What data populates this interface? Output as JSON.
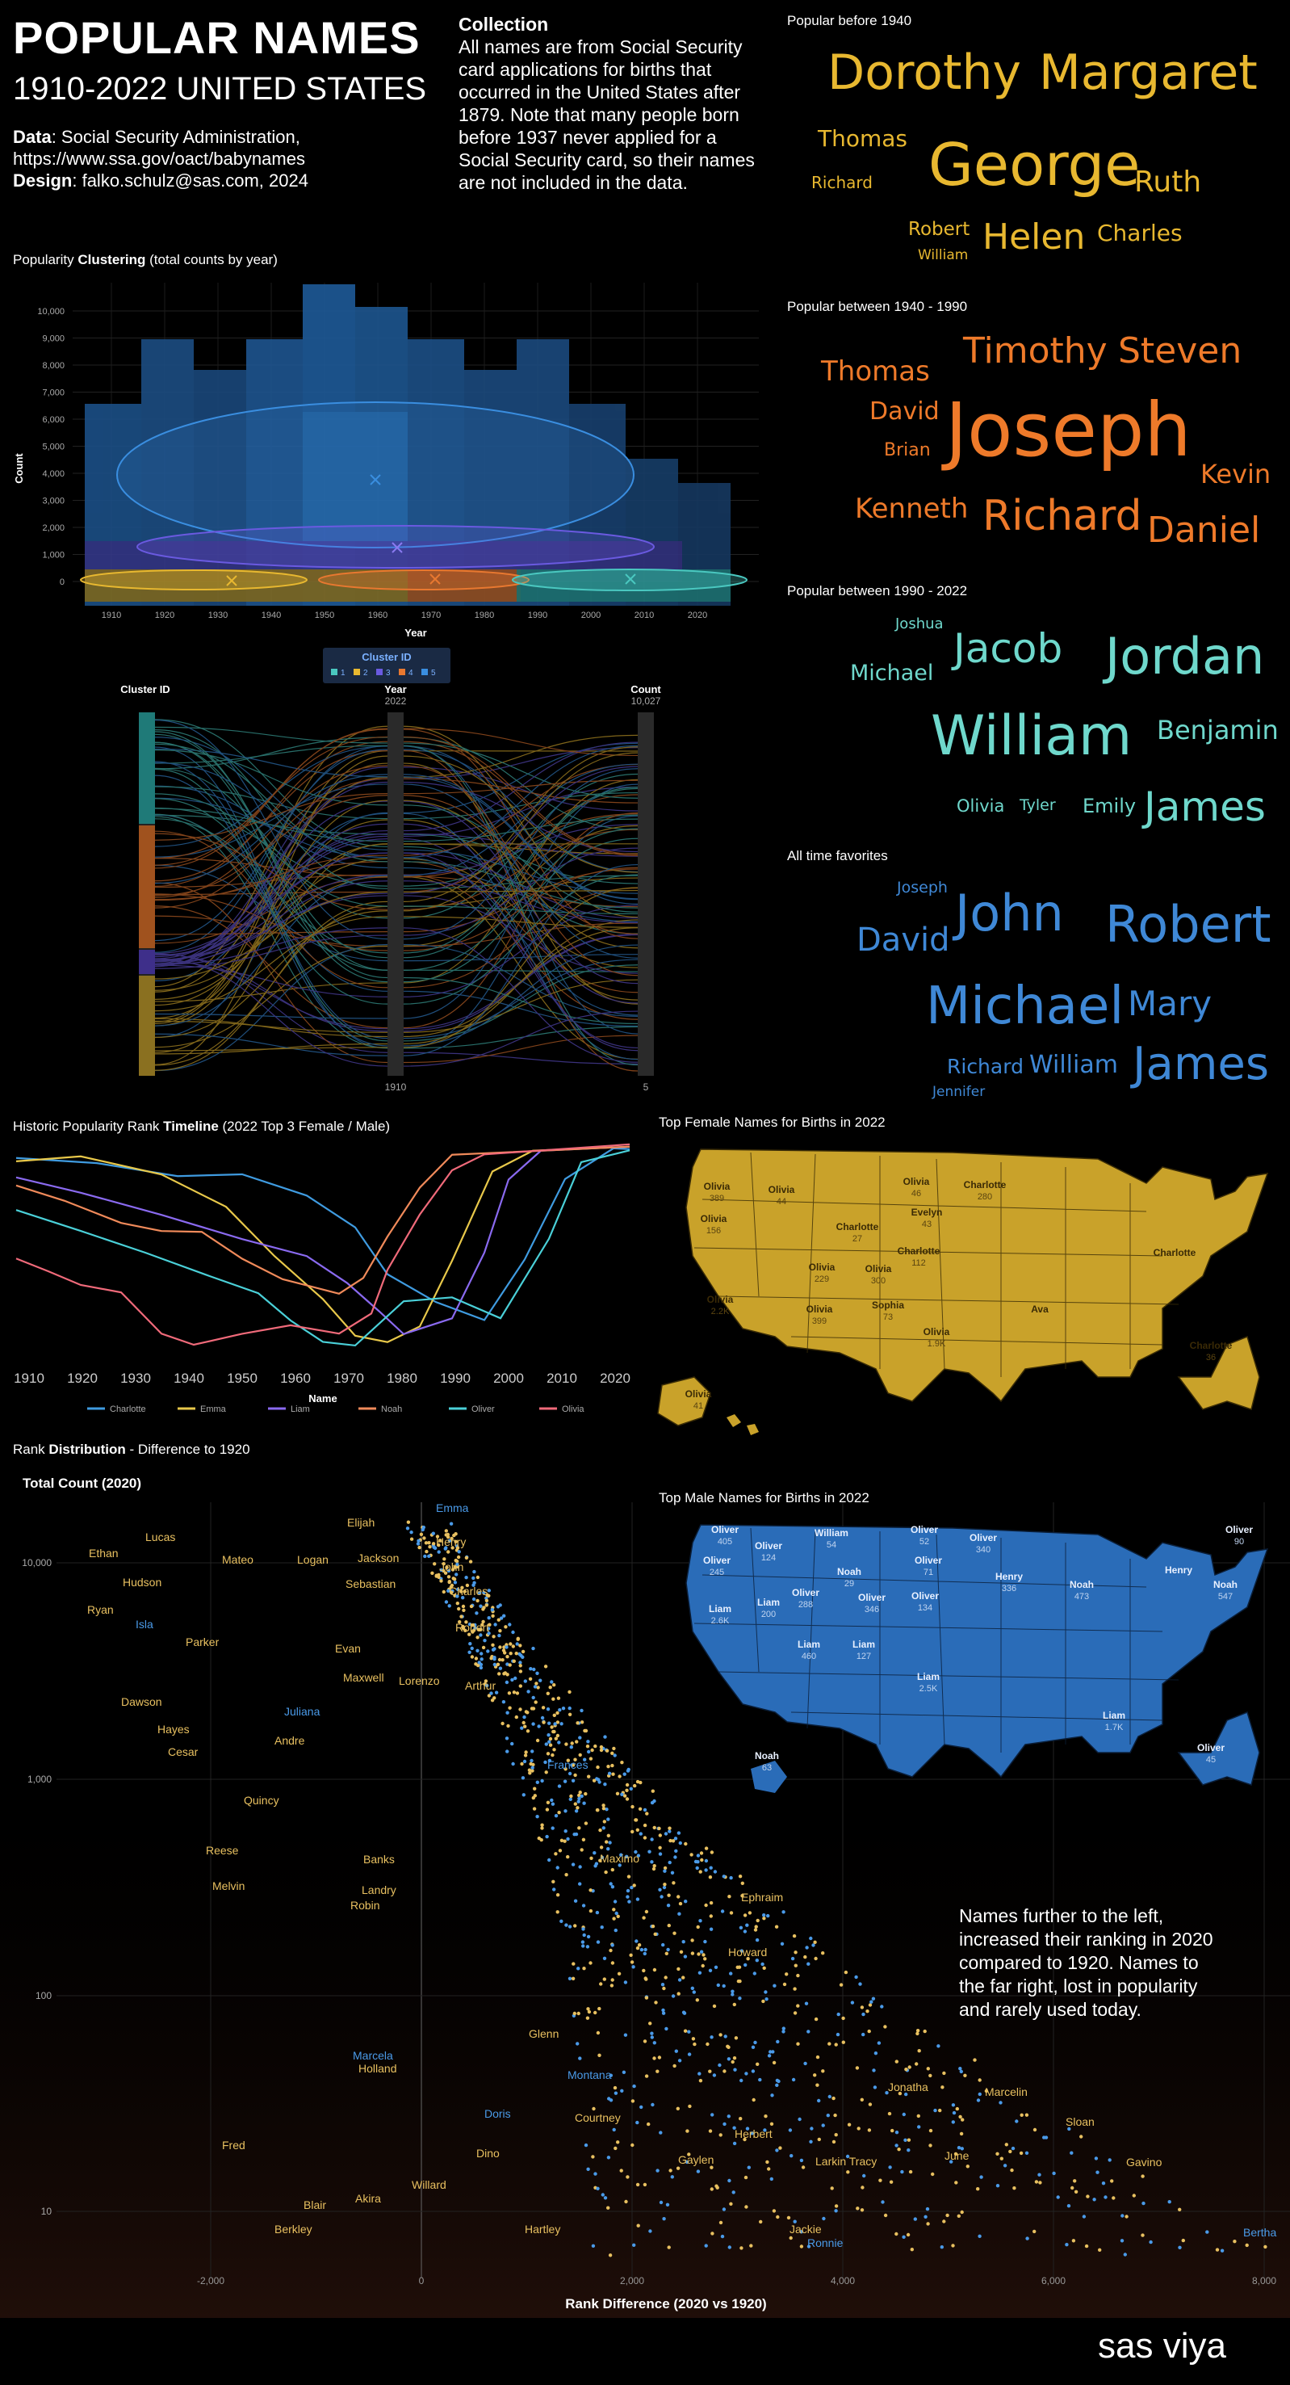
{
  "header": {
    "title": "POPULAR NAMES",
    "subtitle": "1910-2022  UNITED STATES",
    "data_label": "Data",
    "data_text": ": Social Security Administration,",
    "data_url": "https://www.ssa.gov/oact/babynames",
    "design_label": "Design",
    "design_text": ": falko.schulz@sas.com, 2024"
  },
  "collection": {
    "heading": "Collection",
    "text": "All names are from Social Security card applications for births that occurred in the United States after 1879. Note that many people born before 1937 never applied for a Social Security card, so their names are not included in the data."
  },
  "colors": {
    "cluster1": "#4ac8c0",
    "cluster2": "#e8b830",
    "cluster3": "#6a5ae0",
    "cluster4": "#e87830",
    "cluster5": "#3a8ee0",
    "female_map": "#c9a22a",
    "male_map": "#2a6cb8"
  },
  "clouds": {
    "before1940": {
      "title": "Popular before 1940",
      "color": "#e8b830",
      "words": [
        "Dorothy",
        "Margaret",
        "Thomas",
        "George",
        "Richard",
        "Ruth",
        "Robert",
        "Helen",
        "Charles",
        "William"
      ]
    },
    "between1940_1990": {
      "title": "Popular between 1940 - 1990",
      "color": "#ee7a2a",
      "words": [
        "Timothy",
        "Steven",
        "Thomas",
        "David",
        "Joseph",
        "Brian",
        "Kevin",
        "Kenneth",
        "Richard",
        "Daniel"
      ]
    },
    "between1990_2022": {
      "title": "Popular between 1990 - 2022",
      "color": "#6fd8cc",
      "words": [
        "Joshua",
        "Jacob",
        "Jordan",
        "Michael",
        "William",
        "Benjamin",
        "Olivia",
        "Tyler",
        "Emily",
        "James"
      ]
    },
    "alltime": {
      "title": "All time favorites",
      "color": "#3f88d6",
      "words": [
        "Joseph",
        "John",
        "David",
        "Robert",
        "Michael",
        "Mary",
        "Richard",
        "William",
        "James",
        "Jennifer"
      ]
    }
  },
  "cluster_chart": {
    "title_pre": "Popularity ",
    "title_bold": "Clustering",
    "title_post": " (total counts by year)",
    "ylabel": "Count",
    "xlabel": "Year",
    "yticks": [
      "0",
      "1,000",
      "2,000",
      "3,000",
      "4,000",
      "5,000",
      "6,000",
      "7,000",
      "8,000",
      "9,000",
      "10,000"
    ],
    "xticks": [
      "1910",
      "1920",
      "1930",
      "1940",
      "1950",
      "1960",
      "1970",
      "1980",
      "1990",
      "2000",
      "2010",
      "2020"
    ]
  },
  "parallel": {
    "legend_title": "Cluster ID",
    "legend_items": [
      "1",
      "2",
      "3",
      "4",
      "5"
    ],
    "axis1": "Cluster ID",
    "axis2": "Year",
    "axis2_top": "2022",
    "axis2_bottom": "1910",
    "axis3": "Count",
    "axis3_top": "10,027",
    "axis3_bottom": "5"
  },
  "chart_data": [
    {
      "type": "line",
      "title": "Historic Popularity Rank Timeline (2022 Top 3 Female / Male)",
      "xlabel": "Name",
      "x_ticks": [
        "1910",
        "1920",
        "1930",
        "1940",
        "1950",
        "1960",
        "1970",
        "1980",
        "1990",
        "2000",
        "2010",
        "2020"
      ],
      "series": [
        {
          "name": "Charlotte",
          "color": "#3f9be0"
        },
        {
          "name": "Emma",
          "color": "#e8c84a"
        },
        {
          "name": "Liam",
          "color": "#8a6af0"
        },
        {
          "name": "Noah",
          "color": "#f08a5a"
        },
        {
          "name": "Oliver",
          "color": "#4ad0d8"
        },
        {
          "name": "Olivia",
          "color": "#f06a7a"
        }
      ]
    },
    {
      "type": "scatter",
      "title": "Rank Distribution - Difference to 1920",
      "xlabel": "Rank Difference (2020 vs 1920)",
      "ylabel": "Total Count (2020)",
      "y_scale": "log",
      "x_ticks": [
        "-2,000",
        "0",
        "2,000",
        "4,000",
        "6,000",
        "8,000"
      ],
      "y_ticks": [
        "10,000",
        "1,000",
        "100",
        "10"
      ],
      "labels": [
        {
          "t": "Emma",
          "c": "b"
        },
        {
          "t": "Elijah",
          "c": "y"
        },
        {
          "t": "Lucas",
          "c": "y"
        },
        {
          "t": "Henry",
          "c": "y"
        },
        {
          "t": "Ethan",
          "c": "y"
        },
        {
          "t": "Mateo",
          "c": "y"
        },
        {
          "t": "Logan",
          "c": "y"
        },
        {
          "t": "Jackson",
          "c": "y"
        },
        {
          "t": "John",
          "c": "y"
        },
        {
          "t": "Hudson",
          "c": "y"
        },
        {
          "t": "Sebastian",
          "c": "y"
        },
        {
          "t": "Charles",
          "c": "y"
        },
        {
          "t": "Ryan",
          "c": "y"
        },
        {
          "t": "Isla",
          "c": "b"
        },
        {
          "t": "Robert",
          "c": "y"
        },
        {
          "t": "Parker",
          "c": "y"
        },
        {
          "t": "Evan",
          "c": "y"
        },
        {
          "t": "Maxwell",
          "c": "y"
        },
        {
          "t": "Lorenzo",
          "c": "y"
        },
        {
          "t": "Arthur",
          "c": "y"
        },
        {
          "t": "Dawson",
          "c": "y"
        },
        {
          "t": "Juliana",
          "c": "b"
        },
        {
          "t": "Hayes",
          "c": "y"
        },
        {
          "t": "Andre",
          "c": "y"
        },
        {
          "t": "Cesar",
          "c": "y"
        },
        {
          "t": "Frances",
          "c": "b"
        },
        {
          "t": "Quincy",
          "c": "y"
        },
        {
          "t": "Reese",
          "c": "y"
        },
        {
          "t": "Banks",
          "c": "y"
        },
        {
          "t": "Maximo",
          "c": "y"
        },
        {
          "t": "Melvin",
          "c": "y"
        },
        {
          "t": "Landry",
          "c": "y"
        },
        {
          "t": "Robin",
          "c": "y"
        },
        {
          "t": "Ephraim",
          "c": "y"
        },
        {
          "t": "Howard",
          "c": "y"
        },
        {
          "t": "Glenn",
          "c": "y"
        },
        {
          "t": "Marcela",
          "c": "b"
        },
        {
          "t": "Holland",
          "c": "y"
        },
        {
          "t": "Montana",
          "c": "b"
        },
        {
          "t": "Jonatha",
          "c": "y"
        },
        {
          "t": "Doris",
          "c": "b"
        },
        {
          "t": "Courtney",
          "c": "y"
        },
        {
          "t": "Marcelin",
          "c": "y"
        },
        {
          "t": "Fred",
          "c": "y"
        },
        {
          "t": "Sloan",
          "c": "y"
        },
        {
          "t": "Herbert",
          "c": "y"
        },
        {
          "t": "Dino",
          "c": "y"
        },
        {
          "t": "June",
          "c": "y"
        },
        {
          "t": "Gaylen",
          "c": "y"
        },
        {
          "t": "Larkin Tracy",
          "c": "y"
        },
        {
          "t": "Gavino",
          "c": "y"
        },
        {
          "t": "Willard",
          "c": "y"
        },
        {
          "t": "Akira",
          "c": "y"
        },
        {
          "t": "Blair",
          "c": "y"
        },
        {
          "t": "Berkley",
          "c": "y"
        },
        {
          "t": "Hartley",
          "c": "y"
        },
        {
          "t": "Jackie",
          "c": "y"
        },
        {
          "t": "Bertha",
          "c": "b"
        },
        {
          "t": "Ronnie",
          "c": "b"
        }
      ]
    }
  ],
  "timeline_section": {
    "title_pre": "Historic Popularity Rank ",
    "title_bold": "Timeline",
    "title_post": " (2022 Top 3 Female / Male)"
  },
  "female_map": {
    "title": "Top Female Names for Births in 2022",
    "states": [
      {
        "name": "Olivia",
        "count": "389"
      },
      {
        "name": "Olivia",
        "count": "44"
      },
      {
        "name": "Olivia",
        "count": "46"
      },
      {
        "name": "Charlotte",
        "count": "280"
      },
      {
        "name": "Olivia",
        "count": "156"
      },
      {
        "name": "Charlotte",
        "count": "27"
      },
      {
        "name": "Evelyn",
        "count": "43"
      },
      {
        "name": "Charlotte",
        "count": "112"
      },
      {
        "name": "Olivia",
        "count": "229"
      },
      {
        "name": "Olivia",
        "count": "300"
      },
      {
        "name": "Olivia",
        "count": "2.2K"
      },
      {
        "name": "Olivia",
        "count": "399"
      },
      {
        "name": "Sophia",
        "count": "73"
      },
      {
        "name": "Olivia",
        "count": "1.9K"
      },
      {
        "name": "Charlotte",
        "count": "36"
      },
      {
        "name": "Olivia",
        "count": "41"
      },
      {
        "name": "Ava",
        "count": ""
      },
      {
        "name": "Charlotte",
        "count": ""
      }
    ]
  },
  "male_map": {
    "title": "Top Male Names for Births in 2022",
    "states": [
      {
        "name": "Oliver",
        "count": "405"
      },
      {
        "name": "William",
        "count": "54"
      },
      {
        "name": "Oliver",
        "count": "52"
      },
      {
        "name": "Oliver",
        "count": "340"
      },
      {
        "name": "Oliver",
        "count": "124"
      },
      {
        "name": "Oliver",
        "count": "245"
      },
      {
        "name": "Oliver",
        "count": "71"
      },
      {
        "name": "Henry",
        "count": "336"
      },
      {
        "name": "Noah",
        "count": "29"
      },
      {
        "name": "Noah",
        "count": "473"
      },
      {
        "name": "Oliver",
        "count": "134"
      },
      {
        "name": "Liam",
        "count": "2.6K"
      },
      {
        "name": "Liam",
        "count": "200"
      },
      {
        "name": "Oliver",
        "count": "288"
      },
      {
        "name": "Oliver",
        "count": "346"
      },
      {
        "name": "Liam",
        "count": "460"
      },
      {
        "name": "Liam",
        "count": "127"
      },
      {
        "name": "Liam",
        "count": "2.5K"
      },
      {
        "name": "Liam",
        "count": "1.7K"
      },
      {
        "name": "Noah",
        "count": "63"
      },
      {
        "name": "Oliver",
        "count": "45"
      },
      {
        "name": "Henry",
        "count": ""
      },
      {
        "name": "Oliver",
        "count": "90"
      },
      {
        "name": "Noah",
        "count": "547"
      }
    ]
  },
  "scatter_section": {
    "title_pre": "Rank ",
    "title_bold": "Distribution",
    "title_post": " - Difference to 1920"
  },
  "note": "Names further to the left, increased their ranking in 2020 compared to 1920. Names to the far right, lost in popularity and rarely used today.",
  "logo": "sas viya"
}
